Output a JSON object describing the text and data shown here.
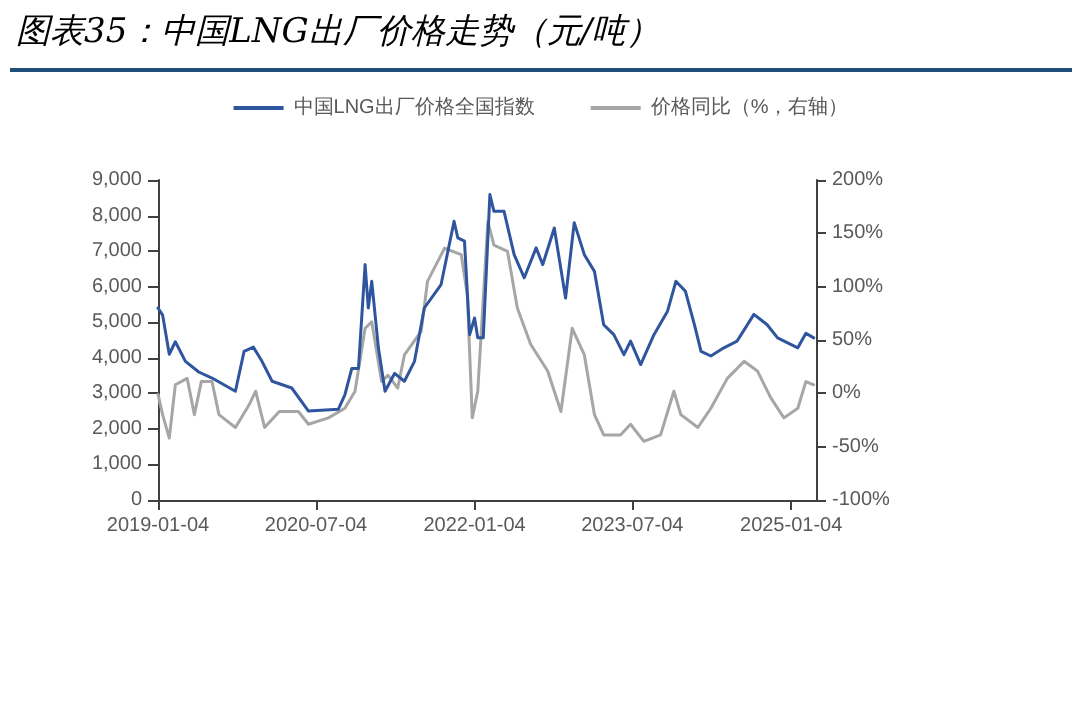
{
  "chart_data": {
    "type": "line",
    "title": "图表35：中国LNG出厂价格走势（元/吨）",
    "xlim": [
      "2019-01-04",
      "2025-03-31"
    ],
    "xticks": [
      "2019-01-04",
      "2020-07-04",
      "2022-01-04",
      "2023-07-04",
      "2025-01-04"
    ],
    "ylim": [
      0,
      9000
    ],
    "yticks": [
      {
        "value": 0,
        "label": "0"
      },
      {
        "value": 1000,
        "label": "1,000"
      },
      {
        "value": 2000,
        "label": "2,000"
      },
      {
        "value": 3000,
        "label": "3,000"
      },
      {
        "value": 4000,
        "label": "4,000"
      },
      {
        "value": 5000,
        "label": "5,000"
      },
      {
        "value": 6000,
        "label": "6,000"
      },
      {
        "value": 7000,
        "label": "7,000"
      },
      {
        "value": 8000,
        "label": "8,000"
      },
      {
        "value": 9000,
        "label": "9,000"
      }
    ],
    "y2lim": [
      -100,
      200
    ],
    "y2ticks": [
      {
        "value": -100,
        "label": "-100%"
      },
      {
        "value": -50,
        "label": "-50%"
      },
      {
        "value": 0,
        "label": "0%"
      },
      {
        "value": 50,
        "label": "50%"
      },
      {
        "value": 100,
        "label": "100%"
      },
      {
        "value": 150,
        "label": "150%"
      },
      {
        "value": 200,
        "label": "200%"
      }
    ],
    "grid": false,
    "legend": "top",
    "marker": "none",
    "line_style": "solid",
    "series": [
      {
        "name": "中国LNG出厂价格全国指数",
        "color": "#2f559e",
        "x": [
          "2019-01-04",
          "2019-01-20",
          "2019-02-12",
          "2019-03-05",
          "2019-04-09",
          "2019-05-25",
          "2019-07-10",
          "2019-09-29",
          "2019-10-29",
          "2019-11-30",
          "2019-12-30",
          "2020-02-03",
          "2020-04-11",
          "2020-06-08",
          "2020-09-19",
          "2020-10-12",
          "2020-11-05",
          "2020-11-28",
          "2020-12-21",
          "2021-01-01",
          "2021-01-13",
          "2021-02-05",
          "2021-02-28",
          "2021-04-02",
          "2021-05-06",
          "2021-06-10",
          "2021-07-14",
          "2021-09-10",
          "2021-10-25",
          "2021-11-07",
          "2021-11-30",
          "2021-12-18",
          "2022-01-04",
          "2022-01-15",
          "2022-02-03",
          "2022-02-26",
          "2022-03-12",
          "2022-04-16",
          "2022-05-21",
          "2022-06-25",
          "2022-08-05",
          "2022-08-28",
          "2022-10-07",
          "2022-11-15",
          "2022-12-15",
          "2023-01-19",
          "2023-02-23",
          "2023-03-27",
          "2023-05-01",
          "2023-06-05",
          "2023-06-28",
          "2023-08-02",
          "2023-09-17",
          "2023-11-03",
          "2023-12-02",
          "2024-01-04",
          "2024-02-04",
          "2024-02-27",
          "2024-04-01",
          "2024-05-16",
          "2024-07-01",
          "2024-08-28",
          "2024-10-13",
          "2024-11-18",
          "2025-01-27",
          "2025-02-24",
          "2025-03-23"
        ],
        "values": [
          5400,
          5200,
          4100,
          4450,
          3900,
          3600,
          3430,
          3060,
          4180,
          4300,
          3900,
          3340,
          3150,
          2500,
          2550,
          2960,
          3700,
          3700,
          6620,
          5400,
          6150,
          4280,
          3060,
          3560,
          3340,
          3900,
          5400,
          6060,
          7840,
          7370,
          7280,
          4650,
          5120,
          4560,
          4560,
          8590,
          8120,
          8120,
          6900,
          6250,
          7090,
          6620,
          7650,
          5680,
          7800,
          6900,
          6430,
          4930,
          4650,
          4090,
          4470,
          3810,
          4650,
          5310,
          6150,
          5870,
          4930,
          4180,
          4050,
          4280,
          4470,
          5220,
          4930,
          4560,
          4280,
          4690,
          4560
        ]
      },
      {
        "name": "价格同比（%，右轴）",
        "color": "#a6a6a6",
        "axis": "y2",
        "x": [
          "2019-01-04",
          "2019-01-20",
          "2019-02-12",
          "2019-03-05",
          "2019-04-15",
          "2019-05-10",
          "2019-06-03",
          "2019-07-10",
          "2019-08-03",
          "2019-09-29",
          "2019-11-15",
          "2019-12-08",
          "2020-01-08",
          "2020-02-28",
          "2020-05-04",
          "2020-06-08",
          "2020-08-16",
          "2020-10-12",
          "2020-11-16",
          "2020-12-21",
          "2021-01-13",
          "2021-02-16",
          "2021-03-10",
          "2021-04-13",
          "2021-05-06",
          "2021-07-03",
          "2021-07-25",
          "2021-09-22",
          "2021-11-19",
          "2021-12-10",
          "2021-12-27",
          "2022-01-15",
          "2022-02-19",
          "2022-03-12",
          "2022-04-28",
          "2022-06-01",
          "2022-07-17",
          "2022-09-14",
          "2022-10-30",
          "2022-12-08",
          "2023-01-19",
          "2023-02-23",
          "2023-03-27",
          "2023-05-24",
          "2023-06-28",
          "2023-08-13",
          "2023-10-10",
          "2023-11-25",
          "2023-12-19",
          "2024-02-16",
          "2024-04-01",
          "2024-05-28",
          "2024-07-25",
          "2024-09-09",
          "2024-10-25",
          "2024-12-10",
          "2025-01-27",
          "2025-02-24",
          "2025-03-23"
        ],
        "values": [
          -1,
          -20,
          -42,
          8,
          14,
          -20,
          11,
          11,
          -20,
          -32,
          -11,
          2,
          -32,
          -17,
          -17,
          -29,
          -23,
          -14,
          2,
          61,
          67,
          11,
          17,
          5,
          36,
          58,
          105,
          136,
          130,
          92,
          -23,
          2,
          161,
          139,
          133,
          80,
          46,
          21,
          -17,
          61,
          36,
          -20,
          -39,
          -39,
          -29,
          -45,
          -39,
          2,
          -20,
          -32,
          -14,
          14,
          30,
          21,
          -4,
          -23,
          -14,
          11,
          8
        ]
      }
    ]
  }
}
